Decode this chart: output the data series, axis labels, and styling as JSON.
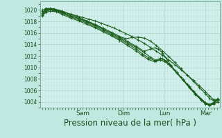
{
  "background_color": "#c0e8e0",
  "plot_bg_color": "#d0eeea",
  "grid_major_color": "#b0d8d0",
  "grid_minor_color": "#c0e4de",
  "line_color": "#1a5c1a",
  "ylim": [
    1003.0,
    1021.5
  ],
  "yticks": [
    1004,
    1006,
    1008,
    1010,
    1012,
    1014,
    1016,
    1018,
    1020
  ],
  "xlabel": "Pression niveau de la mer( hPa )",
  "xlabel_fontsize": 8.5,
  "day_labels": [
    "Sam",
    "Dim",
    "Lun",
    "Mar"
  ],
  "day_positions": [
    1.0,
    2.0,
    3.0,
    4.0
  ],
  "xlim": [
    -0.05,
    4.35
  ],
  "lines": [
    [
      0.0,
      1020.0,
      0.08,
      1020.1,
      0.15,
      1020.2,
      0.25,
      1020.1,
      0.4,
      1019.9,
      0.55,
      1019.6,
      0.7,
      1019.3,
      0.85,
      1019.0,
      1.0,
      1018.7,
      1.15,
      1018.4,
      1.3,
      1018.1,
      1.45,
      1017.7,
      1.6,
      1017.3,
      1.75,
      1016.9,
      1.9,
      1016.4,
      2.05,
      1015.9,
      2.2,
      1015.4,
      2.35,
      1014.8,
      2.5,
      1014.2,
      2.65,
      1013.5,
      2.8,
      1012.8,
      2.95,
      1012.1,
      3.1,
      1011.3,
      3.25,
      1010.5,
      3.4,
      1009.6,
      3.55,
      1008.7,
      3.7,
      1007.8,
      3.85,
      1006.8,
      4.0,
      1005.8,
      4.1,
      1005.0,
      4.2,
      1004.4,
      4.3,
      1004.2
    ],
    [
      0.0,
      1019.8,
      0.1,
      1020.3,
      0.2,
      1020.2,
      0.35,
      1019.9,
      0.5,
      1019.5,
      0.7,
      1019.0,
      0.9,
      1018.5,
      1.1,
      1018.0,
      1.3,
      1017.4,
      1.5,
      1016.8,
      1.7,
      1016.1,
      1.9,
      1015.4,
      2.05,
      1015.0,
      2.2,
      1015.2,
      2.35,
      1015.3,
      2.5,
      1015.1,
      2.65,
      1014.6,
      2.8,
      1013.8,
      2.95,
      1012.9,
      3.1,
      1011.9,
      3.25,
      1010.9,
      3.4,
      1009.8,
      3.55,
      1008.7,
      3.7,
      1007.6,
      3.85,
      1006.5,
      4.0,
      1005.4,
      4.1,
      1004.6,
      4.2,
      1004.2,
      4.3,
      1004.5
    ],
    [
      0.0,
      1019.5,
      0.1,
      1020.1,
      0.2,
      1020.3,
      0.3,
      1020.2,
      0.5,
      1019.8,
      0.7,
      1019.2,
      0.9,
      1018.7,
      1.1,
      1018.1,
      1.3,
      1017.5,
      1.5,
      1016.8,
      1.7,
      1016.1,
      1.9,
      1015.3,
      2.1,
      1014.5,
      2.3,
      1013.7,
      2.5,
      1012.8,
      2.65,
      1013.2,
      2.75,
      1013.4,
      2.85,
      1013.2,
      2.95,
      1012.5,
      3.05,
      1011.5,
      3.15,
      1010.4,
      3.3,
      1009.1,
      3.45,
      1007.8,
      3.6,
      1006.5,
      3.75,
      1005.3,
      3.9,
      1004.3,
      4.0,
      1003.7,
      4.1,
      1003.5,
      4.2,
      1003.8,
      4.3,
      1004.5
    ],
    [
      0.0,
      1019.3,
      0.1,
      1020.0,
      0.2,
      1020.2,
      0.3,
      1020.1,
      0.5,
      1019.6,
      0.7,
      1019.0,
      0.9,
      1018.5,
      1.1,
      1017.9,
      1.3,
      1017.3,
      1.5,
      1016.6,
      1.7,
      1015.9,
      1.9,
      1015.1,
      2.1,
      1014.3,
      2.3,
      1013.5,
      2.5,
      1012.6,
      2.65,
      1011.8,
      2.8,
      1011.2,
      2.95,
      1011.5,
      3.05,
      1011.0,
      3.15,
      1010.2,
      3.3,
      1009.0,
      3.45,
      1007.8,
      3.6,
      1006.6,
      3.75,
      1005.4,
      3.9,
      1004.3,
      4.0,
      1003.6,
      4.1,
      1003.4,
      4.2,
      1003.7,
      4.3,
      1004.3
    ],
    [
      0.0,
      1019.1,
      0.1,
      1019.8,
      0.2,
      1020.0,
      0.3,
      1019.9,
      0.5,
      1019.4,
      0.7,
      1018.8,
      0.9,
      1018.3,
      1.1,
      1017.7,
      1.3,
      1017.1,
      1.5,
      1016.4,
      1.7,
      1015.7,
      1.9,
      1014.9,
      2.1,
      1014.1,
      2.3,
      1013.2,
      2.45,
      1012.4,
      2.6,
      1011.7,
      2.75,
      1011.2,
      2.9,
      1011.6,
      3.0,
      1011.3,
      3.1,
      1010.6,
      3.25,
      1009.5,
      3.4,
      1008.3,
      3.55,
      1007.1,
      3.7,
      1005.9,
      3.85,
      1004.8,
      4.0,
      1003.9,
      4.1,
      1003.5,
      4.2,
      1003.6,
      4.3,
      1004.0
    ],
    [
      0.0,
      1019.0,
      0.1,
      1019.6,
      0.2,
      1019.8,
      0.35,
      1019.7,
      0.5,
      1019.2,
      0.7,
      1018.6,
      0.9,
      1018.1,
      1.1,
      1017.5,
      1.3,
      1016.9,
      1.5,
      1016.2,
      1.7,
      1015.5,
      1.9,
      1014.7,
      2.1,
      1013.8,
      2.3,
      1012.9,
      2.45,
      1012.1,
      2.6,
      1011.4,
      2.75,
      1011.0,
      2.9,
      1011.3,
      3.0,
      1011.0,
      3.15,
      1010.3,
      3.3,
      1009.1,
      3.45,
      1007.9,
      3.6,
      1006.7,
      3.75,
      1005.5,
      3.9,
      1004.5,
      4.0,
      1003.8,
      4.1,
      1003.6,
      4.2,
      1003.9,
      4.3,
      1004.6
    ]
  ]
}
